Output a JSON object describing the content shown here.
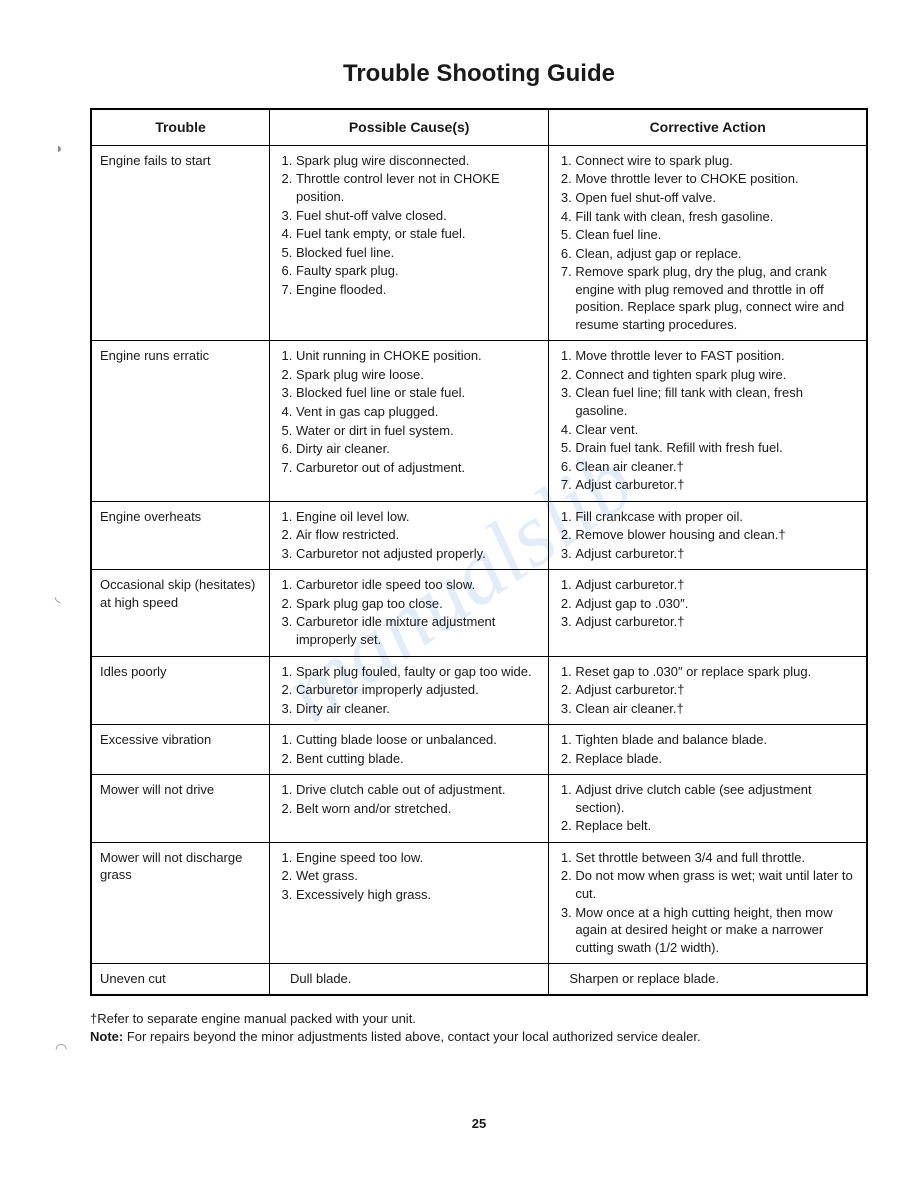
{
  "watermark": "manualslib",
  "title": "Trouble Shooting Guide",
  "headers": {
    "trouble": "Trouble",
    "cause": "Possible Cause(s)",
    "action": "Corrective Action"
  },
  "rows": [
    {
      "trouble": "Engine fails to start",
      "causes": [
        "Spark plug wire disconnected.",
        "Throttle control lever not in CHOKE position.",
        "Fuel shut-off valve closed.",
        "Fuel tank empty, or stale fuel.",
        "Blocked fuel line.",
        "Faulty spark plug.",
        "Engine flooded."
      ],
      "actions": [
        "Connect wire to spark plug.",
        "Move throttle lever to CHOKE position.",
        "Open fuel shut-off valve.",
        "Fill tank with clean, fresh gasoline.",
        "Clean fuel line.",
        "Clean, adjust gap or replace.",
        "Remove spark plug, dry the plug, and crank engine with plug removed and throttle in off position. Replace spark plug, connect wire and resume starting procedures."
      ]
    },
    {
      "trouble": "Engine runs erratic",
      "causes": [
        "Unit running in CHOKE position.",
        "Spark plug wire loose.",
        "Blocked fuel line or stale fuel.",
        "Vent in gas cap plugged.",
        "Water or dirt in fuel system.",
        "Dirty air cleaner.",
        "Carburetor out of adjustment."
      ],
      "actions": [
        "Move throttle lever to FAST position.",
        "Connect and tighten spark plug wire.",
        "Clean fuel line; fill tank with clean, fresh gasoline.",
        "Clear vent.",
        "Drain fuel tank. Refill with fresh fuel.",
        "Clean air cleaner.†",
        "Adjust carburetor.†"
      ]
    },
    {
      "trouble": "Engine overheats",
      "causes": [
        "Engine oil level low.",
        "Air flow restricted.",
        "Carburetor not adjusted properly."
      ],
      "actions": [
        "Fill crankcase with proper oil.",
        "Remove blower housing and clean.†",
        "Adjust carburetor.†"
      ]
    },
    {
      "trouble": "Occasional skip (hesitates) at high speed",
      "causes": [
        "Carburetor idle speed too slow.",
        "Spark plug gap too close.",
        "Carburetor idle mixture adjustment improperly set."
      ],
      "actions": [
        "Adjust carburetor.†",
        "Adjust gap to .030″.",
        "Adjust carburetor.†"
      ]
    },
    {
      "trouble": "Idles poorly",
      "causes": [
        "Spark plug fouled, faulty or gap too wide.",
        "Carburetor improperly adjusted.",
        "Dirty air cleaner."
      ],
      "actions": [
        "Reset gap to .030″ or replace spark plug.",
        "Adjust carburetor.†",
        "Clean air cleaner.†"
      ]
    },
    {
      "trouble": "Excessive vibration",
      "causes": [
        "Cutting blade loose or unbalanced.",
        "Bent cutting blade."
      ],
      "actions": [
        "Tighten blade and balance blade.",
        "Replace blade."
      ]
    },
    {
      "trouble": "Mower will not drive",
      "causes": [
        "Drive clutch cable out of adjustment.",
        "Belt worn and/or stretched."
      ],
      "actions": [
        "Adjust drive clutch cable (see adjustment section).",
        "Replace belt."
      ]
    },
    {
      "trouble": "Mower will not discharge grass",
      "causes": [
        "Engine speed too low.",
        "Wet grass.",
        "Excessively high grass."
      ],
      "actions": [
        "Set throttle between 3/4 and full throttle.",
        "Do not mow when grass is wet; wait until later to cut.",
        "Mow once at a high cutting height, then mow again at desired height or make a narrower cutting swath (1/2 width)."
      ]
    },
    {
      "trouble": "Uneven cut",
      "cause_single": "Dull blade.",
      "action_single": "Sharpen or replace blade."
    }
  ],
  "footnote1": "†Refer to separate engine manual packed with your unit.",
  "footnote2_label": "Note:",
  "footnote2_text": " For repairs beyond the minor adjustments listed above, contact your local authorized service dealer.",
  "page_number": "25"
}
